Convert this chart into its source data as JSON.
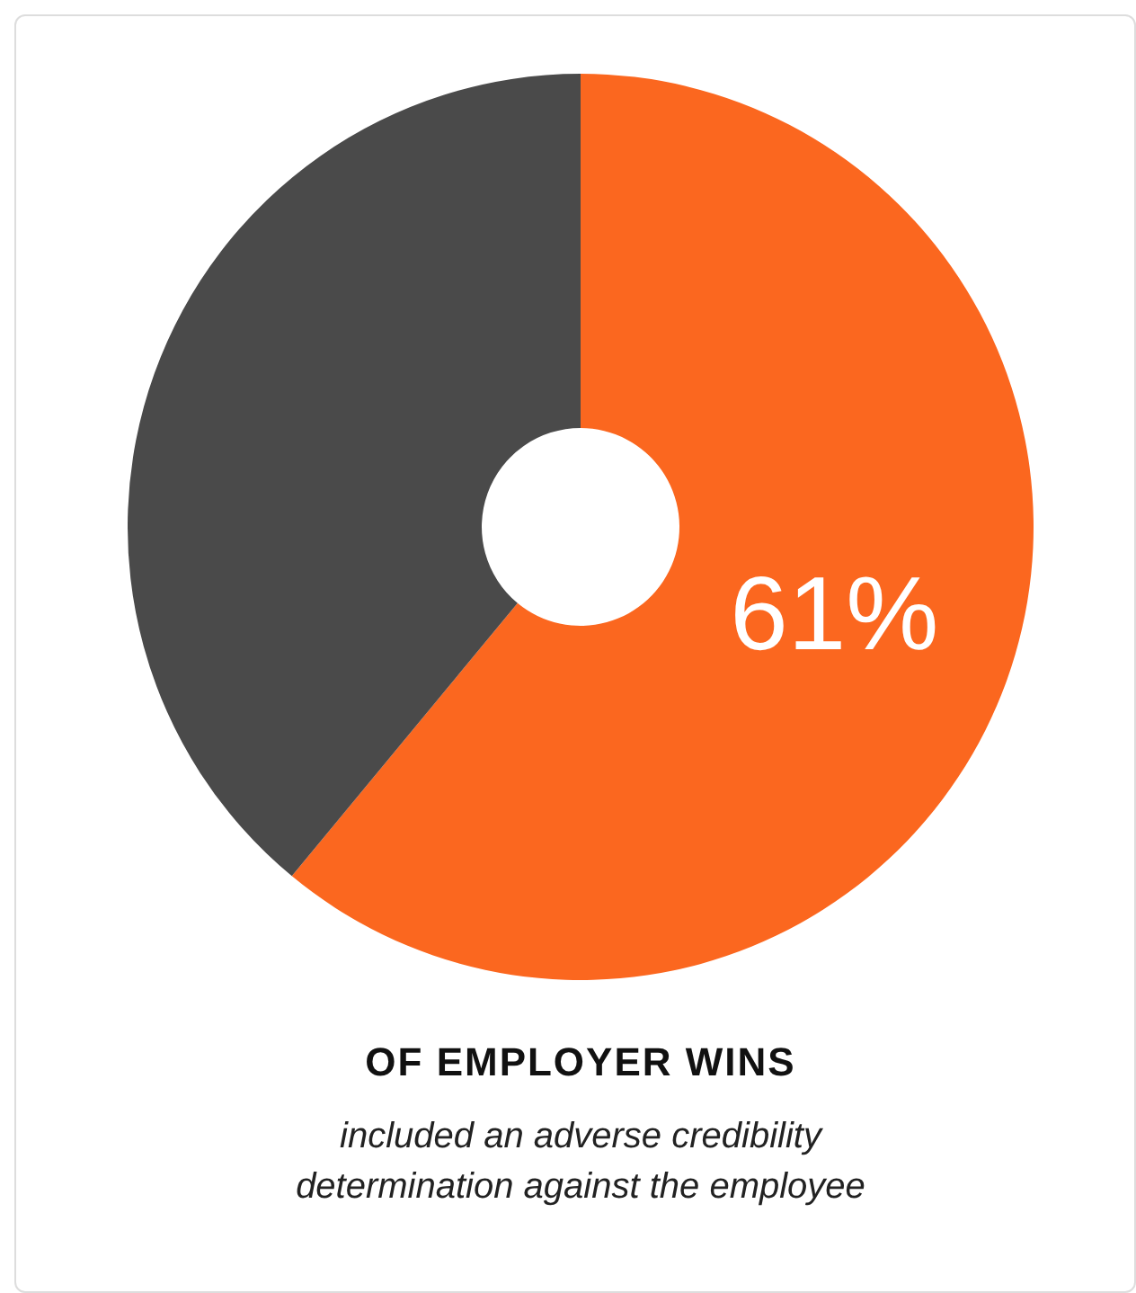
{
  "chart_data": {
    "type": "donut",
    "title": "OF EMPLOYER WINS",
    "subtitle": "included an adverse credibility determination against the employee",
    "categories": [
      null,
      null
    ],
    "values": [
      61,
      39
    ],
    "colors": [
      "#fb671f",
      "#4a4a4a"
    ],
    "value_labels": [
      "61%",
      null
    ],
    "legend": false
  }
}
